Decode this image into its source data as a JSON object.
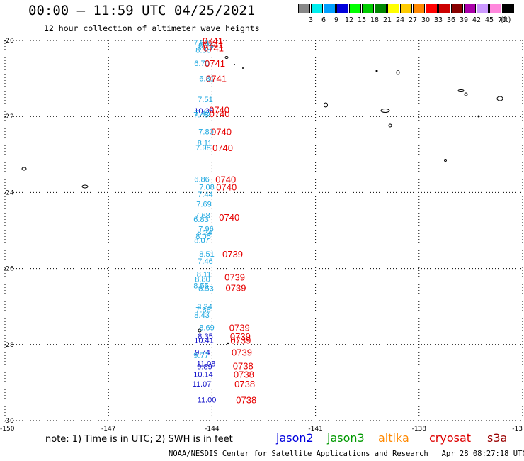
{
  "header": {
    "title": "00:00 – 11:59 UTC 04/25/2021",
    "subtitle": "12 hour collection of altimeter wave heights"
  },
  "legend": {
    "unit": "(ft)",
    "bins": [
      {
        "label": "3",
        "color": "#888888"
      },
      {
        "label": "6",
        "color": "#00eeee"
      },
      {
        "label": "9",
        "color": "#00a0ff"
      },
      {
        "label": "12",
        "color": "#0000dd"
      },
      {
        "label": "15",
        "color": "#00ff00"
      },
      {
        "label": "18",
        "color": "#00cc00"
      },
      {
        "label": "21",
        "color": "#008800"
      },
      {
        "label": "24",
        "color": "#ffff00"
      },
      {
        "label": "27",
        "color": "#ffcc00"
      },
      {
        "label": "30",
        "color": "#ff8800"
      },
      {
        "label": "33",
        "color": "#ff0000"
      },
      {
        "label": "36",
        "color": "#cc0000"
      },
      {
        "label": "39",
        "color": "#880000"
      },
      {
        "label": "42",
        "color": "#aa00aa"
      },
      {
        "label": "45",
        "color": "#cc99ff"
      },
      {
        "label": "70",
        "color": "#ff88dd"
      },
      {
        "label": "",
        "color": "#000000"
      }
    ]
  },
  "map": {
    "lat_labels": [
      "-20",
      "-22",
      "-24",
      "-26",
      "-28",
      "-30"
    ],
    "lon_labels": [
      "-150",
      "-147",
      "-144",
      "-141",
      "-138",
      "-13"
    ],
    "lat_range": [
      -30,
      -20
    ],
    "lon_range": [
      -150,
      -135
    ],
    "grid": "dotted",
    "swh_points": [
      {
        "lat": -20.06,
        "value": "7.69",
        "color": "#1fa8e0"
      },
      {
        "lat": -20.13,
        "value": "8.25",
        "color": "#1fa8e0"
      },
      {
        "lat": -20.19,
        "value": "8.23",
        "color": "#1fa8e0"
      },
      {
        "lat": -20.25,
        "value": "8.36",
        "color": "#1fa8e0"
      },
      {
        "lat": -20.6,
        "value": "6.70",
        "color": "#1fa8e0"
      },
      {
        "lat": -21.0,
        "value": "6.81",
        "color": "#1fa8e0"
      },
      {
        "lat": -21.55,
        "value": "7.51",
        "color": "#1fa8e0"
      },
      {
        "lat": -21.85,
        "value": "10.35",
        "color": "#1010c8"
      },
      {
        "lat": -21.9,
        "value": "7.45",
        "color": "#1fa8e0"
      },
      {
        "lat": -21.95,
        "value": "7.48",
        "color": "#1fa8e0"
      },
      {
        "lat": -22.4,
        "value": "7.80",
        "color": "#1fa8e0"
      },
      {
        "lat": -22.7,
        "value": "8.11",
        "color": "#1fa8e0"
      },
      {
        "lat": -22.82,
        "value": "7.98",
        "color": "#1fa8e0"
      },
      {
        "lat": -23.65,
        "value": "6.86",
        "color": "#1fa8e0"
      },
      {
        "lat": -23.85,
        "value": "7.08",
        "color": "#1fa8e0"
      },
      {
        "lat": -24.05,
        "value": "7.44",
        "color": "#1fa8e0"
      },
      {
        "lat": -24.3,
        "value": "7.69",
        "color": "#1fa8e0"
      },
      {
        "lat": -24.6,
        "value": "7.68",
        "color": "#1fa8e0"
      },
      {
        "lat": -24.7,
        "value": "6.83",
        "color": "#1fa8e0"
      },
      {
        "lat": -24.95,
        "value": "7.96",
        "color": "#1fa8e0"
      },
      {
        "lat": -25.05,
        "value": "8.24",
        "color": "#1fa8e0"
      },
      {
        "lat": -25.15,
        "value": "8.05",
        "color": "#1fa8e0"
      },
      {
        "lat": -25.25,
        "value": "8.07",
        "color": "#1fa8e0"
      },
      {
        "lat": -25.62,
        "value": "8.51",
        "color": "#1fa8e0"
      },
      {
        "lat": -25.8,
        "value": "7.46",
        "color": "#1fa8e0"
      },
      {
        "lat": -26.15,
        "value": "8.11",
        "color": "#1fa8e0"
      },
      {
        "lat": -26.28,
        "value": "8.80",
        "color": "#1fa8e0"
      },
      {
        "lat": -26.45,
        "value": "8.55",
        "color": "#1fa8e0"
      },
      {
        "lat": -26.52,
        "value": "8.53",
        "color": "#1fa8e0"
      },
      {
        "lat": -27.0,
        "value": "8.34",
        "color": "#1fa8e0"
      },
      {
        "lat": -27.08,
        "value": "7.88",
        "color": "#1fa8e0"
      },
      {
        "lat": -27.22,
        "value": "8.43",
        "color": "#1fa8e0"
      },
      {
        "lat": -27.55,
        "value": "8.69",
        "color": "#1fa8e0"
      },
      {
        "lat": -27.78,
        "value": "8.35",
        "color": "#1010c8"
      },
      {
        "lat": -27.88,
        "value": "10.41",
        "color": "#1010c8"
      },
      {
        "lat": -28.2,
        "value": "9.74",
        "color": "#1010c8"
      },
      {
        "lat": -28.28,
        "value": "9.77",
        "color": "#1fa8e0"
      },
      {
        "lat": -28.5,
        "value": "11.08",
        "color": "#1010c8"
      },
      {
        "lat": -28.57,
        "value": "9.89",
        "color": "#1010c8"
      },
      {
        "lat": -28.78,
        "value": "10.14",
        "color": "#1010c8"
      },
      {
        "lat": -29.03,
        "value": "11.07",
        "color": "#1010c8"
      },
      {
        "lat": -29.45,
        "value": "11.00",
        "color": "#1010c8"
      }
    ],
    "time_labels": [
      {
        "lat": -20.0,
        "value": "0741"
      },
      {
        "lat": -20.1,
        "value": "0741"
      },
      {
        "lat": -20.2,
        "value": "0741"
      },
      {
        "lat": -20.6,
        "value": "0741"
      },
      {
        "lat": -21.0,
        "value": "0741"
      },
      {
        "lat": -21.82,
        "value": "0740"
      },
      {
        "lat": -21.92,
        "value": "0740"
      },
      {
        "lat": -22.4,
        "value": "0740"
      },
      {
        "lat": -22.82,
        "value": "0740"
      },
      {
        "lat": -23.65,
        "value": "0740"
      },
      {
        "lat": -23.85,
        "value": "0740"
      },
      {
        "lat": -24.65,
        "value": "0740"
      },
      {
        "lat": -25.62,
        "value": "0739"
      },
      {
        "lat": -26.22,
        "value": "0739"
      },
      {
        "lat": -26.5,
        "value": "0739"
      },
      {
        "lat": -27.55,
        "value": "0739"
      },
      {
        "lat": -27.78,
        "value": "0739"
      },
      {
        "lat": -27.88,
        "value": "0739"
      },
      {
        "lat": -28.2,
        "value": "0739"
      },
      {
        "lat": -28.55,
        "value": "0738"
      },
      {
        "lat": -28.78,
        "value": "0738"
      },
      {
        "lat": -29.03,
        "value": "0738"
      },
      {
        "lat": -29.45,
        "value": "0738"
      }
    ]
  },
  "footer": {
    "note": "note: 1) Time is in UTC; 2) SWH is in feet",
    "satellites": [
      {
        "name": "jason2",
        "color": "#0000dd"
      },
      {
        "name": "jason3",
        "color": "#009900"
      },
      {
        "name": "altika",
        "color": "#ff8800"
      },
      {
        "name": "cryosat",
        "color": "#dd0000"
      },
      {
        "name": "s3a",
        "color": "#990000"
      }
    ],
    "credit": "NOAA/NESDIS Center for Satellite Applications and Research   Apr 28 08:27:18 UTC 2021"
  }
}
